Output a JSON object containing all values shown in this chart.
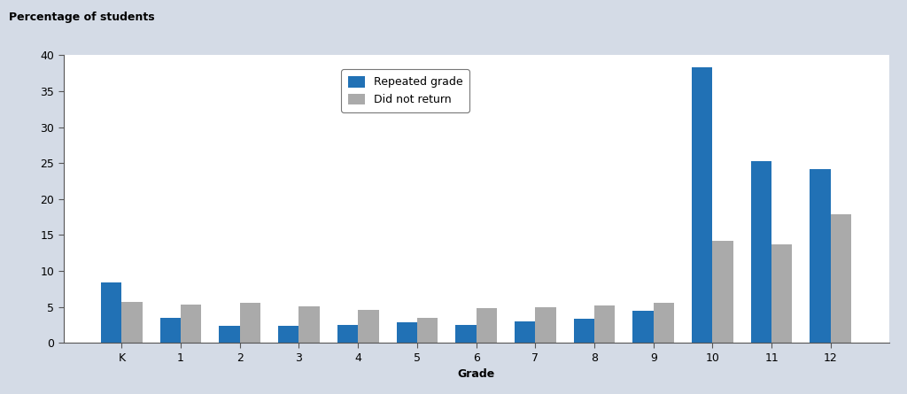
{
  "categories": [
    "K",
    "1",
    "2",
    "3",
    "4",
    "5",
    "6",
    "7",
    "8",
    "9",
    "10",
    "11",
    "12"
  ],
  "repeated_grade": [
    8.4,
    3.5,
    2.3,
    2.3,
    2.5,
    2.8,
    2.5,
    3.0,
    3.3,
    4.5,
    38.3,
    25.2,
    24.2
  ],
  "did_not_return": [
    5.7,
    5.3,
    5.5,
    5.1,
    4.6,
    3.5,
    4.8,
    4.9,
    5.2,
    5.6,
    14.2,
    13.7,
    17.9
  ],
  "repeated_color": "#2171b5",
  "did_not_return_color": "#aaaaaa",
  "background_color": "#d4dbe6",
  "plot_bg_color": "#ffffff",
  "ylabel_text": "Percentage of students",
  "xlabel": "Grade",
  "legend_labels": [
    "Repeated grade",
    "Did not return"
  ],
  "ylim": [
    0,
    40
  ],
  "yticks": [
    0,
    5,
    10,
    15,
    20,
    25,
    30,
    35,
    40
  ],
  "bar_width": 0.35,
  "label_fontsize": 9,
  "tick_fontsize": 9,
  "legend_fontsize": 9,
  "ylabel_fontsize": 9
}
